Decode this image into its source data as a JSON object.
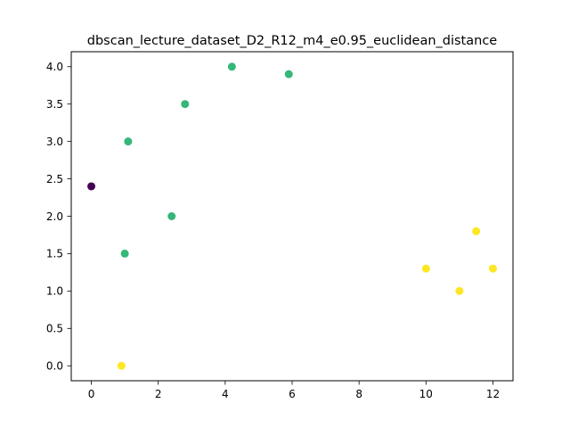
{
  "chart_data": {
    "type": "scatter",
    "title": "dbscan_lecture_dataset_D2_R12_m4_e0.95_euclidean_distance",
    "xlabel": "",
    "ylabel": "",
    "xlim": [
      -0.6,
      12.6
    ],
    "ylim": [
      -0.2,
      4.2
    ],
    "xticks": [
      0,
      2,
      4,
      6,
      8,
      10,
      12
    ],
    "yticks": [
      0.0,
      0.5,
      1.0,
      1.5,
      2.0,
      2.5,
      3.0,
      3.5,
      4.0
    ],
    "xtick_labels": [
      "0",
      "2",
      "4",
      "6",
      "8",
      "10",
      "12"
    ],
    "ytick_labels": [
      "0.0",
      "0.5",
      "1.0",
      "1.5",
      "2.0",
      "2.5",
      "3.0",
      "3.5",
      "4.0"
    ],
    "grid": false,
    "legend": "none",
    "colors": {
      "noise": "#440154",
      "cluster_a": "#35b779",
      "cluster_b": "#fde725"
    },
    "points": [
      {
        "x": 0.0,
        "y": 2.4,
        "group": "noise"
      },
      {
        "x": 1.0,
        "y": 1.5,
        "group": "cluster_a"
      },
      {
        "x": 1.1,
        "y": 3.0,
        "group": "cluster_a"
      },
      {
        "x": 2.4,
        "y": 2.0,
        "group": "cluster_a"
      },
      {
        "x": 2.8,
        "y": 3.5,
        "group": "cluster_a"
      },
      {
        "x": 4.2,
        "y": 4.0,
        "group": "cluster_a"
      },
      {
        "x": 5.9,
        "y": 3.9,
        "group": "cluster_a"
      },
      {
        "x": 0.9,
        "y": 0.0,
        "group": "cluster_b"
      },
      {
        "x": 10.0,
        "y": 1.3,
        "group": "cluster_b"
      },
      {
        "x": 11.0,
        "y": 1.0,
        "group": "cluster_b"
      },
      {
        "x": 11.5,
        "y": 1.8,
        "group": "cluster_b"
      },
      {
        "x": 12.0,
        "y": 1.3,
        "group": "cluster_b"
      }
    ]
  }
}
